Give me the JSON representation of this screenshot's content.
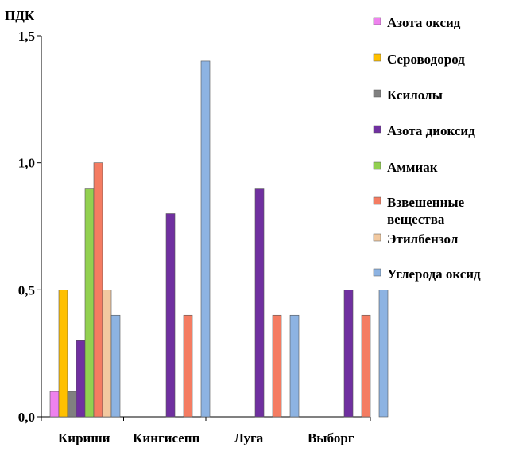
{
  "chart_data": {
    "type": "bar",
    "ylabel": "ПДК",
    "ylim": [
      0,
      1.5
    ],
    "yticks": [
      {
        "value": 0,
        "label": "0,0"
      },
      {
        "value": 0.5,
        "label": "0,5"
      },
      {
        "value": 1.0,
        "label": "1,0"
      },
      {
        "value": 1.5,
        "label": "1,5"
      }
    ],
    "grid": false,
    "legend_position": "right",
    "categories": [
      "Кириши",
      "Кингисепп",
      "Луга",
      "Выборг"
    ],
    "series": [
      {
        "name": "Азота оксид",
        "color": "#ee82ee",
        "values": [
          0.1,
          null,
          null,
          null
        ]
      },
      {
        "name": "Сероводород",
        "color": "#ffc000",
        "values": [
          0.5,
          null,
          null,
          null
        ]
      },
      {
        "name": "Ксилолы",
        "color": "#808080",
        "values": [
          0.1,
          null,
          null,
          null
        ]
      },
      {
        "name": "Азота диоксид",
        "color": "#7030a0",
        "values": [
          0.3,
          0.8,
          0.9,
          0.5
        ]
      },
      {
        "name": "Аммиак",
        "color": "#92d050",
        "values": [
          0.9,
          null,
          null,
          null
        ]
      },
      {
        "name": "Взвешенные вещества",
        "color": "#f47c62",
        "values": [
          1.0,
          0.4,
          0.4,
          0.4
        ]
      },
      {
        "name": "Этилбензол",
        "color": "#f2c9a0",
        "values": [
          0.5,
          null,
          null,
          null
        ]
      },
      {
        "name": "Углерода оксид",
        "color": "#8db3e2",
        "values": [
          0.4,
          1.4,
          0.4,
          0.5
        ]
      }
    ]
  }
}
